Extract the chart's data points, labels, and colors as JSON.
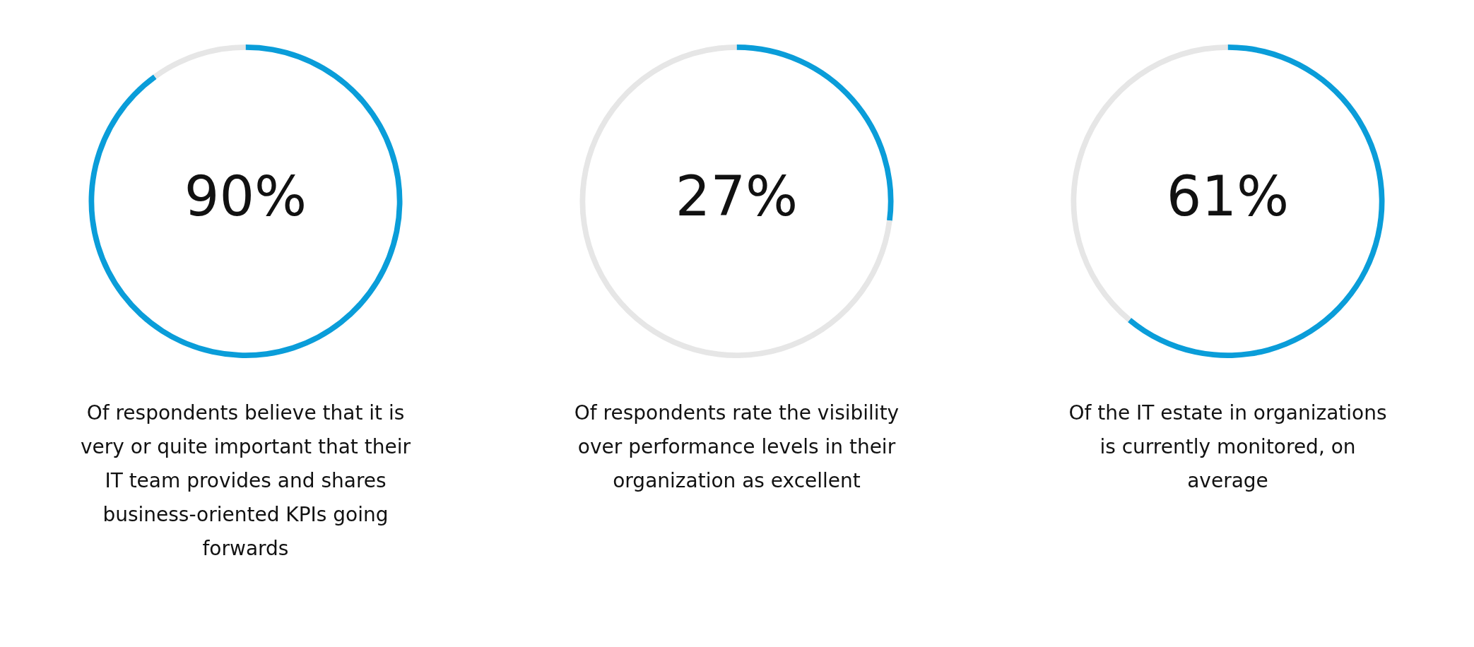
{
  "chart_data": [
    {
      "type": "donut",
      "categories": [
        null,
        null
      ],
      "values": [
        90,
        10
      ],
      "colors": [
        "#0a9dd9",
        "#e6e6e6"
      ],
      "value_labels": [
        "90%",
        null
      ],
      "legend": false,
      "annotations": [
        "Of respondents believe that it is very or quite important that their IT team provides and shares business-oriented KPIs going forwards"
      ]
    },
    {
      "type": "donut",
      "categories": [
        null,
        null
      ],
      "values": [
        27,
        73
      ],
      "colors": [
        "#0a9dd9",
        "#e6e6e6"
      ],
      "value_labels": [
        "27%",
        null
      ],
      "legend": false,
      "annotations": [
        "Of respondents rate the visibility over performance levels in their organization as excellent"
      ]
    },
    {
      "type": "donut",
      "categories": [
        null,
        null
      ],
      "values": [
        61,
        39
      ],
      "colors": [
        "#0a9dd9",
        "#e6e6e6"
      ],
      "value_labels": [
        "61%",
        null
      ],
      "legend": false,
      "annotations": [
        "Of the IT estate in organizations is currently monitored, on average"
      ]
    }
  ]
}
